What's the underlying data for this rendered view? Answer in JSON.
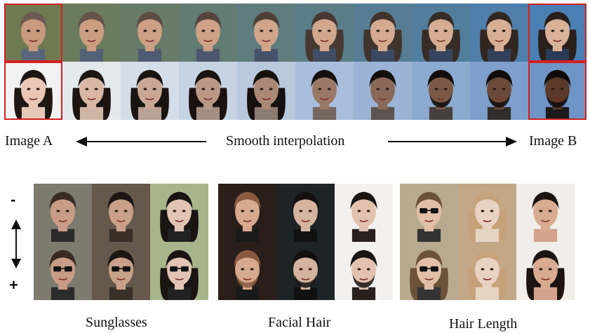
{
  "labels": {
    "image_a": "Image A",
    "image_b": "Image B",
    "interpolation": "Smooth interpolation"
  },
  "attribute_signs": {
    "minus": "-",
    "plus": "+"
  },
  "attributes": [
    {
      "caption": "Sunglasses"
    },
    {
      "caption": "Facial Hair"
    },
    {
      "caption": "Hair Length"
    }
  ],
  "colors": {
    "highlight": "#d42020",
    "arrow": "#111111"
  },
  "icons": {
    "left_arrow": "long-left-arrow-icon",
    "right_arrow": "long-right-arrow-icon",
    "updown_arrow": "double-headed-vertical-arrow-icon"
  }
}
